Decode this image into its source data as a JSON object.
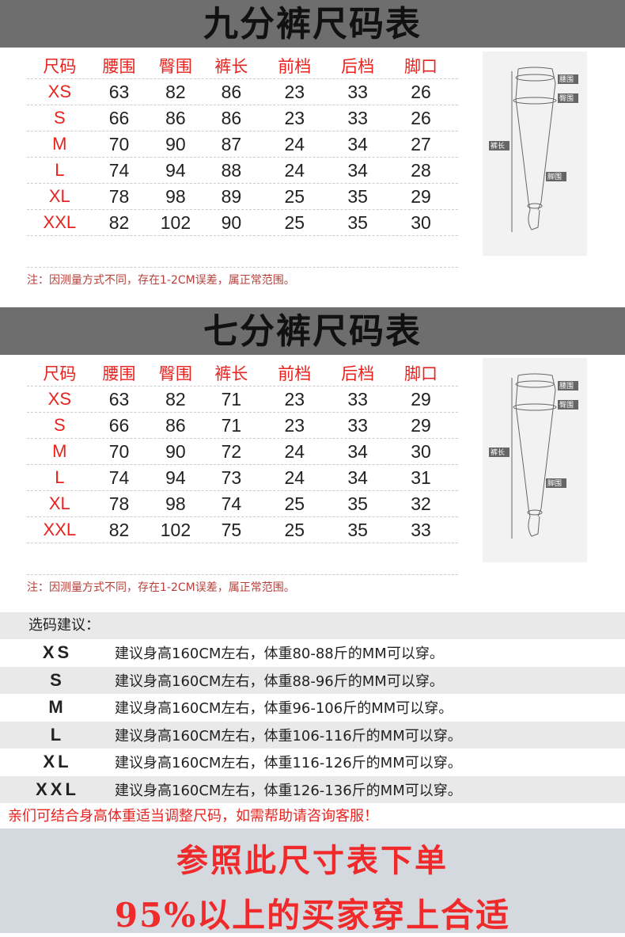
{
  "headers": [
    "尺码",
    "腰围",
    "臀围",
    "裤长",
    "前档",
    "后档",
    "脚口"
  ],
  "table1": {
    "title": "九分裤尺码表",
    "rows": [
      [
        "XS",
        "63",
        "82",
        "86",
        "23",
        "33",
        "26"
      ],
      [
        "S",
        "66",
        "86",
        "86",
        "23",
        "33",
        "26"
      ],
      [
        "M",
        "70",
        "90",
        "87",
        "24",
        "34",
        "27"
      ],
      [
        "L",
        "74",
        "94",
        "88",
        "24",
        "34",
        "28"
      ],
      [
        "XL",
        "78",
        "98",
        "89",
        "25",
        "35",
        "29"
      ],
      [
        "XXL",
        "82",
        "102",
        "90",
        "25",
        "35",
        "30"
      ]
    ],
    "note": "注：因测量方式不同，存在1-2CM误差，属正常范围。"
  },
  "table2": {
    "title": "七分裤尺码表",
    "rows": [
      [
        "XS",
        "63",
        "82",
        "71",
        "23",
        "33",
        "29"
      ],
      [
        "S",
        "66",
        "86",
        "71",
        "23",
        "33",
        "29"
      ],
      [
        "M",
        "70",
        "90",
        "72",
        "24",
        "34",
        "30"
      ],
      [
        "L",
        "74",
        "94",
        "73",
        "24",
        "34",
        "31"
      ],
      [
        "XL",
        "78",
        "98",
        "74",
        "25",
        "35",
        "32"
      ],
      [
        "XXL",
        "82",
        "102",
        "75",
        "25",
        "35",
        "33"
      ]
    ],
    "note": "注：因测量方式不同，存在1-2CM误差，属正常范围。"
  },
  "figure_labels": {
    "waist": "腰围",
    "hip": "臀围",
    "length": "裤长",
    "hem": "脚围"
  },
  "suggest": {
    "label": "选码建议：",
    "rows": [
      [
        "XS",
        "建议身高160CM左右，体重80-88斤的MM可以穿。"
      ],
      [
        "S",
        "建议身高160CM左右，体重88-96斤的MM可以穿。"
      ],
      [
        "M",
        "建议身高160CM左右，体重96-106斤的MM可以穿。"
      ],
      [
        "L",
        "建议身高160CM左右，体重106-116斤的MM可以穿。"
      ],
      [
        "XL",
        "建议身高160CM左右，体重116-126斤的MM可以穿。"
      ],
      [
        "XXL",
        "建议身高160CM左右，体重126-136斤的MM可以穿。"
      ]
    ],
    "tip": "亲们可结合身高体重适当调整尺码，如需帮助请咨询客服！"
  },
  "footer": {
    "line1": "参照此尺寸表下单",
    "line2": "95%以上的买家穿上合适"
  },
  "colors": {
    "accent": "#e8231f",
    "banner": "#6e6e6e",
    "footer_bg": "#d4d8df"
  }
}
